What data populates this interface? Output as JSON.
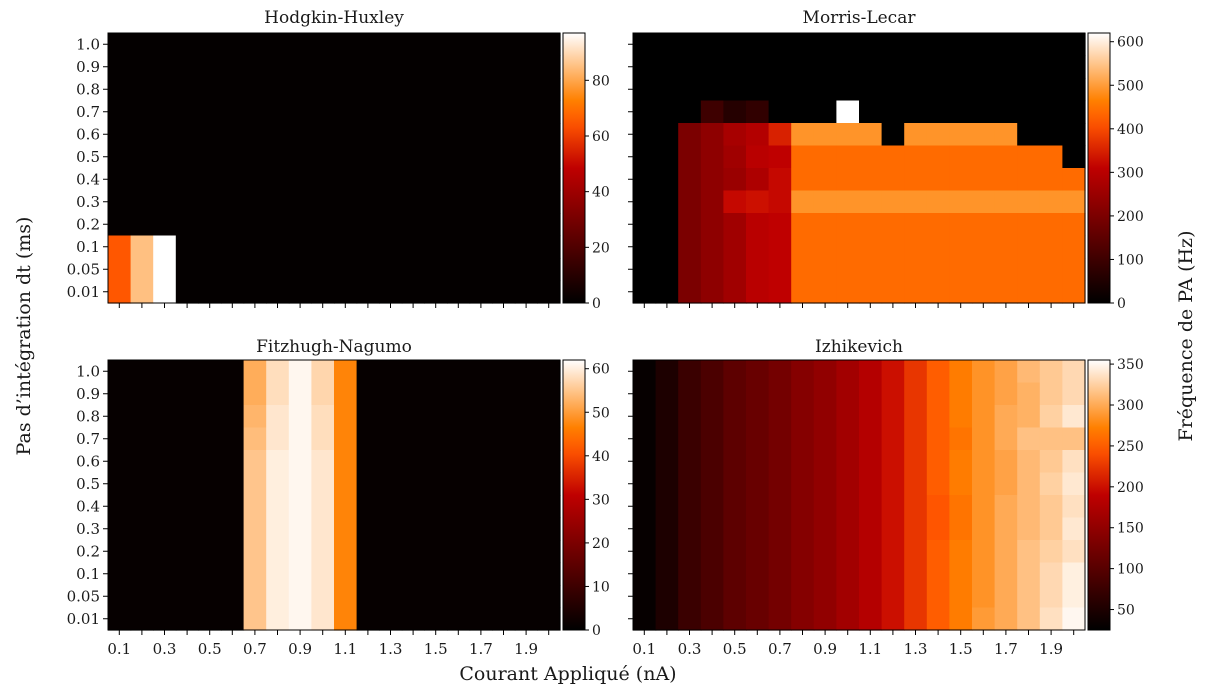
{
  "figure": {
    "xlabel": "Courant Appliqué (nA)",
    "ylabel": "Pas d’intégration dt (ms)",
    "colorbar_label": "Fréquence de PA (Hz)"
  },
  "chart_data": [
    {
      "type": "heatmap",
      "title": "Hodgkin-Huxley",
      "colormap": "gist_heat",
      "x": [
        0.1,
        0.2,
        0.3,
        0.4,
        0.5,
        0.6,
        0.7,
        0.8,
        0.9,
        1.0,
        1.1,
        1.2,
        1.3,
        1.4,
        1.5,
        1.6,
        1.7,
        1.8,
        1.9,
        2.0
      ],
      "x_tick_labels": [
        "0.1",
        "0.3",
        "0.5",
        "0.7",
        "0.9",
        "1.1",
        "1.3",
        "1.5",
        "1.7",
        "1.9"
      ],
      "y_tick_labels": [
        "1.0",
        "0.9",
        "0.8",
        "0.7",
        "0.6",
        "0.5",
        "0.4",
        "0.3",
        "0.2",
        "0.1",
        "0.05",
        "0.01"
      ],
      "colorbar_range": [
        0,
        97
      ],
      "colorbar_ticks": [
        0,
        20,
        40,
        60,
        80
      ],
      "rows": {
        "1.0": [
          1,
          1,
          1,
          1,
          1,
          1,
          1,
          1,
          1,
          1,
          1,
          1,
          1,
          1,
          1,
          1,
          1,
          1,
          1,
          1
        ],
        "0.9": [
          1,
          1,
          1,
          1,
          1,
          1,
          1,
          1,
          1,
          1,
          1,
          1,
          1,
          1,
          1,
          1,
          1,
          1,
          1,
          1
        ],
        "0.8": [
          1,
          1,
          1,
          1,
          1,
          1,
          1,
          1,
          1,
          1,
          1,
          1,
          1,
          1,
          1,
          1,
          1,
          1,
          1,
          1
        ],
        "0.7": [
          1,
          1,
          1,
          1,
          1,
          1,
          1,
          1,
          1,
          1,
          1,
          1,
          1,
          1,
          1,
          1,
          1,
          1,
          1,
          1
        ],
        "0.6": [
          1,
          1,
          1,
          1,
          1,
          1,
          1,
          1,
          1,
          1,
          1,
          1,
          1,
          1,
          1,
          1,
          1,
          1,
          1,
          1
        ],
        "0.5": [
          1,
          1,
          1,
          1,
          1,
          1,
          1,
          1,
          1,
          1,
          1,
          1,
          1,
          1,
          1,
          1,
          1,
          1,
          1,
          1
        ],
        "0.4": [
          1,
          1,
          1,
          1,
          1,
          1,
          1,
          1,
          1,
          1,
          1,
          1,
          1,
          1,
          1,
          1,
          1,
          1,
          1,
          1
        ],
        "0.3": [
          1,
          1,
          1,
          1,
          1,
          1,
          1,
          1,
          1,
          1,
          1,
          1,
          1,
          1,
          1,
          1,
          1,
          1,
          1,
          1
        ],
        "0.2": [
          1,
          1,
          1,
          1,
          1,
          1,
          1,
          1,
          1,
          1,
          1,
          1,
          1,
          1,
          1,
          1,
          1,
          1,
          1,
          1
        ],
        "0.1": [
          65,
          85,
          97,
          1,
          1,
          1,
          1,
          1,
          1,
          1,
          1,
          1,
          1,
          1,
          1,
          1,
          1,
          1,
          1,
          1
        ],
        "0.05": [
          65,
          85,
          97,
          1,
          1,
          1,
          1,
          1,
          1,
          1,
          1,
          1,
          1,
          1,
          1,
          1,
          1,
          1,
          1,
          1
        ],
        "0.01": [
          65,
          85,
          97,
          1,
          1,
          1,
          1,
          1,
          1,
          1,
          1,
          1,
          1,
          1,
          1,
          1,
          1,
          1,
          1,
          1
        ]
      }
    },
    {
      "type": "heatmap",
      "title": "Morris-Lecar",
      "colormap": "gist_heat",
      "x": [
        0.1,
        0.2,
        0.3,
        0.4,
        0.5,
        0.6,
        0.7,
        0.8,
        0.9,
        1.0,
        1.1,
        1.2,
        1.3,
        1.4,
        1.5,
        1.6,
        1.7,
        1.8,
        1.9,
        2.0
      ],
      "x_tick_labels": [
        "0.1",
        "0.3",
        "0.5",
        "0.7",
        "0.9",
        "1.1",
        "1.3",
        "1.5",
        "1.7",
        "1.9"
      ],
      "y_tick_labels": [
        "1.0",
        "0.9",
        "0.8",
        "0.7",
        "0.6",
        "0.5",
        "0.4",
        "0.3",
        "0.2",
        "0.1",
        "0.05",
        "0.01"
      ],
      "colorbar_range": [
        0,
        620
      ],
      "colorbar_ticks": [
        0,
        100,
        200,
        300,
        400,
        500,
        600
      ],
      "rows": {
        "1.0": [
          0,
          0,
          0,
          0,
          0,
          0,
          0,
          0,
          0,
          0,
          0,
          0,
          0,
          0,
          0,
          0,
          0,
          0,
          0,
          0
        ],
        "0.9": [
          0,
          0,
          0,
          0,
          0,
          0,
          0,
          0,
          0,
          0,
          0,
          0,
          0,
          0,
          0,
          0,
          0,
          0,
          0,
          0
        ],
        "0.8": [
          0,
          0,
          0,
          0,
          0,
          0,
          0,
          0,
          0,
          0,
          0,
          0,
          0,
          0,
          0,
          0,
          0,
          0,
          0,
          0
        ],
        "0.7": [
          0,
          0,
          0,
          100,
          60,
          80,
          0,
          0,
          0,
          620,
          0,
          0,
          0,
          0,
          0,
          0,
          0,
          0,
          0,
          0
        ],
        "0.6": [
          0,
          0,
          200,
          230,
          270,
          290,
          350,
          490,
          490,
          490,
          490,
          0,
          490,
          490,
          490,
          490,
          490,
          0,
          0,
          0
        ],
        "0.5": [
          0,
          0,
          200,
          230,
          260,
          300,
          310,
          440,
          440,
          440,
          440,
          440,
          440,
          440,
          440,
          440,
          440,
          440,
          440,
          0
        ],
        "0.4": [
          0,
          0,
          200,
          230,
          250,
          280,
          320,
          440,
          440,
          440,
          440,
          440,
          440,
          440,
          440,
          440,
          440,
          440,
          440,
          440
        ],
        "0.3": [
          0,
          0,
          200,
          230,
          320,
          330,
          320,
          490,
          490,
          490,
          490,
          490,
          490,
          490,
          490,
          490,
          490,
          490,
          490,
          490
        ],
        "0.2": [
          0,
          0,
          200,
          230,
          260,
          300,
          310,
          440,
          440,
          440,
          440,
          440,
          440,
          440,
          440,
          440,
          440,
          440,
          440,
          440
        ],
        "0.1": [
          0,
          0,
          200,
          230,
          260,
          300,
          310,
          440,
          440,
          440,
          440,
          440,
          440,
          440,
          440,
          440,
          440,
          440,
          440,
          440
        ],
        "0.05": [
          0,
          0,
          200,
          230,
          260,
          300,
          310,
          440,
          440,
          440,
          440,
          440,
          440,
          440,
          440,
          440,
          440,
          440,
          440,
          440
        ],
        "0.01": [
          0,
          0,
          200,
          230,
          260,
          300,
          310,
          440,
          440,
          440,
          440,
          440,
          440,
          440,
          440,
          440,
          440,
          440,
          440,
          440
        ]
      }
    },
    {
      "type": "heatmap",
      "title": "Fitzhugh-Nagumo",
      "colormap": "gist_heat",
      "x": [
        0.1,
        0.2,
        0.3,
        0.4,
        0.5,
        0.6,
        0.7,
        0.8,
        0.9,
        1.0,
        1.1,
        1.2,
        1.3,
        1.4,
        1.5,
        1.6,
        1.7,
        1.8,
        1.9,
        2.0
      ],
      "x_tick_labels": [
        "0.1",
        "0.3",
        "0.5",
        "0.7",
        "0.9",
        "1.1",
        "1.3",
        "1.5",
        "1.7",
        "1.9"
      ],
      "y_tick_labels": [
        "1.0",
        "0.9",
        "0.8",
        "0.7",
        "0.6",
        "0.5",
        "0.4",
        "0.3",
        "0.2",
        "0.1",
        "0.05",
        "0.01"
      ],
      "colorbar_range": [
        0,
        62
      ],
      "colorbar_ticks": [
        0,
        10,
        20,
        30,
        40,
        50,
        60
      ],
      "rows": {
        "1.0": [
          1,
          1,
          1,
          1,
          1,
          1,
          52,
          58,
          61,
          57,
          47,
          1,
          1,
          1,
          1,
          1,
          1,
          1,
          1,
          1
        ],
        "0.9": [
          1,
          1,
          1,
          1,
          1,
          1,
          52,
          58,
          61,
          57,
          47,
          1,
          1,
          1,
          1,
          1,
          1,
          1,
          1,
          1
        ],
        "0.8": [
          1,
          1,
          1,
          1,
          1,
          1,
          53,
          59,
          61,
          58,
          47,
          1,
          1,
          1,
          1,
          1,
          1,
          1,
          1,
          1
        ],
        "0.7": [
          1,
          1,
          1,
          1,
          1,
          1,
          54,
          59,
          61,
          58,
          47,
          1,
          1,
          1,
          1,
          1,
          1,
          1,
          1,
          1
        ],
        "0.6": [
          1,
          1,
          1,
          1,
          1,
          1,
          55,
          60,
          61,
          59,
          47,
          1,
          1,
          1,
          1,
          1,
          1,
          1,
          1,
          1
        ],
        "0.5": [
          1,
          1,
          1,
          1,
          1,
          1,
          55,
          60,
          61,
          59,
          47,
          1,
          1,
          1,
          1,
          1,
          1,
          1,
          1,
          1
        ],
        "0.4": [
          1,
          1,
          1,
          1,
          1,
          1,
          55,
          60,
          61,
          59,
          47,
          1,
          1,
          1,
          1,
          1,
          1,
          1,
          1,
          1
        ],
        "0.3": [
          1,
          1,
          1,
          1,
          1,
          1,
          55,
          60,
          61,
          59,
          47,
          1,
          1,
          1,
          1,
          1,
          1,
          1,
          1,
          1
        ],
        "0.2": [
          1,
          1,
          1,
          1,
          1,
          1,
          55,
          60,
          61,
          59,
          47,
          1,
          1,
          1,
          1,
          1,
          1,
          1,
          1,
          1
        ],
        "0.1": [
          1,
          1,
          1,
          1,
          1,
          1,
          55,
          60,
          61,
          59,
          47,
          1,
          1,
          1,
          1,
          1,
          1,
          1,
          1,
          1
        ],
        "0.05": [
          1,
          1,
          1,
          1,
          1,
          1,
          55,
          60,
          61,
          59,
          47,
          1,
          1,
          1,
          1,
          1,
          1,
          1,
          1,
          1
        ],
        "0.01": [
          1,
          1,
          1,
          1,
          1,
          1,
          55,
          60,
          61,
          59,
          47,
          1,
          1,
          1,
          1,
          1,
          1,
          1,
          1,
          1
        ]
      }
    },
    {
      "type": "heatmap",
      "title": "Izhikevich",
      "colormap": "gist_heat",
      "x": [
        0.1,
        0.2,
        0.3,
        0.4,
        0.5,
        0.6,
        0.7,
        0.8,
        0.9,
        1.0,
        1.1,
        1.2,
        1.3,
        1.4,
        1.5,
        1.6,
        1.7,
        1.8,
        1.9,
        2.0
      ],
      "x_tick_labels": [
        "0.1",
        "0.3",
        "0.5",
        "0.7",
        "0.9",
        "1.1",
        "1.3",
        "1.5",
        "1.7",
        "1.9"
      ],
      "y_tick_labels": [
        "1.0",
        "0.9",
        "0.8",
        "0.7",
        "0.6",
        "0.5",
        "0.4",
        "0.3",
        "0.2",
        "0.1",
        "0.05",
        "0.01"
      ],
      "colorbar_range": [
        25,
        355
      ],
      "colorbar_ticks": [
        50,
        100,
        150,
        200,
        250,
        300,
        350
      ],
      "rows": {
        "1.0": [
          30,
          50,
          75,
          90,
          105,
          115,
          125,
          140,
          150,
          165,
          180,
          200,
          225,
          250,
          270,
          285,
          295,
          310,
          320,
          330
        ],
        "0.9": [
          30,
          50,
          75,
          90,
          105,
          115,
          125,
          140,
          150,
          165,
          180,
          200,
          225,
          250,
          270,
          285,
          295,
          305,
          320,
          330
        ],
        "0.8": [
          30,
          50,
          75,
          90,
          105,
          115,
          125,
          140,
          150,
          165,
          180,
          200,
          225,
          250,
          270,
          285,
          300,
          305,
          325,
          340
        ],
        "0.7": [
          30,
          50,
          75,
          90,
          105,
          115,
          125,
          140,
          150,
          165,
          180,
          200,
          225,
          250,
          265,
          285,
          300,
          315,
          315,
          315
        ],
        "0.6": [
          30,
          50,
          75,
          90,
          105,
          115,
          125,
          140,
          150,
          165,
          180,
          200,
          225,
          250,
          270,
          285,
          295,
          310,
          320,
          335
        ],
        "0.5": [
          30,
          50,
          75,
          90,
          105,
          115,
          125,
          140,
          150,
          165,
          180,
          200,
          225,
          250,
          270,
          285,
          295,
          310,
          325,
          340
        ],
        "0.4": [
          30,
          50,
          75,
          90,
          105,
          115,
          125,
          140,
          150,
          165,
          180,
          200,
          225,
          245,
          265,
          285,
          300,
          310,
          320,
          335
        ],
        "0.3": [
          30,
          50,
          75,
          90,
          105,
          115,
          125,
          140,
          150,
          165,
          180,
          200,
          225,
          245,
          265,
          285,
          300,
          310,
          320,
          340
        ],
        "0.2": [
          30,
          50,
          75,
          90,
          105,
          115,
          125,
          140,
          150,
          165,
          180,
          200,
          225,
          250,
          270,
          285,
          300,
          315,
          325,
          335
        ],
        "0.1": [
          30,
          50,
          75,
          90,
          105,
          115,
          125,
          140,
          150,
          165,
          180,
          200,
          225,
          250,
          270,
          285,
          300,
          315,
          330,
          345
        ],
        "0.05": [
          30,
          50,
          75,
          90,
          105,
          115,
          125,
          140,
          150,
          165,
          180,
          200,
          225,
          250,
          270,
          285,
          300,
          315,
          330,
          345
        ],
        "0.01": [
          30,
          50,
          75,
          90,
          105,
          115,
          125,
          140,
          150,
          165,
          180,
          200,
          225,
          250,
          270,
          290,
          300,
          315,
          335,
          350
        ]
      }
    }
  ]
}
